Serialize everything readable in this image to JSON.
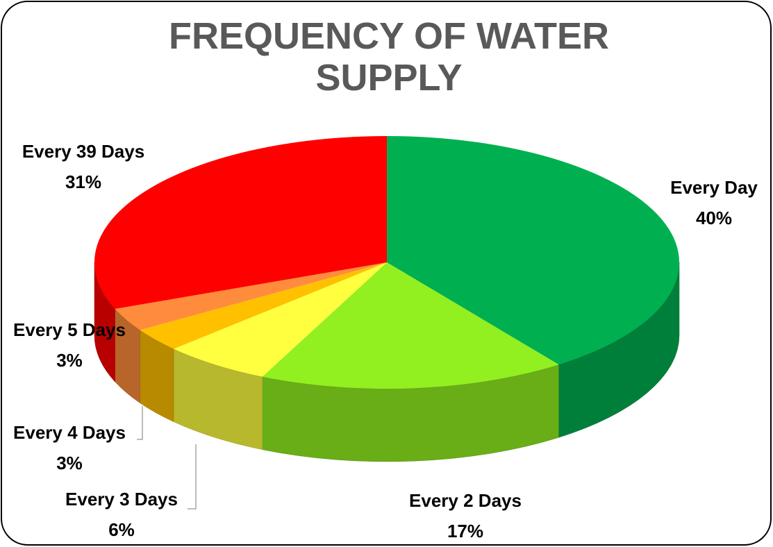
{
  "chart_data": {
    "type": "pie",
    "title": "FREQUENCY OF WATER SUPPLY",
    "categories": [
      "Every Day",
      "Every 2 Days",
      "Every 3 Days",
      "Every 4 Days",
      "Every 5 Days",
      "Every 39 Days"
    ],
    "values": [
      40,
      17,
      6,
      3,
      3,
      31
    ],
    "value_labels": [
      "40%",
      "17%",
      "6%",
      "3%",
      "3%",
      "31%"
    ],
    "colors": [
      "#00b050",
      "#92f020",
      "#ffff40",
      "#ffc000",
      "#ff8c3c",
      "#ff0000"
    ]
  }
}
